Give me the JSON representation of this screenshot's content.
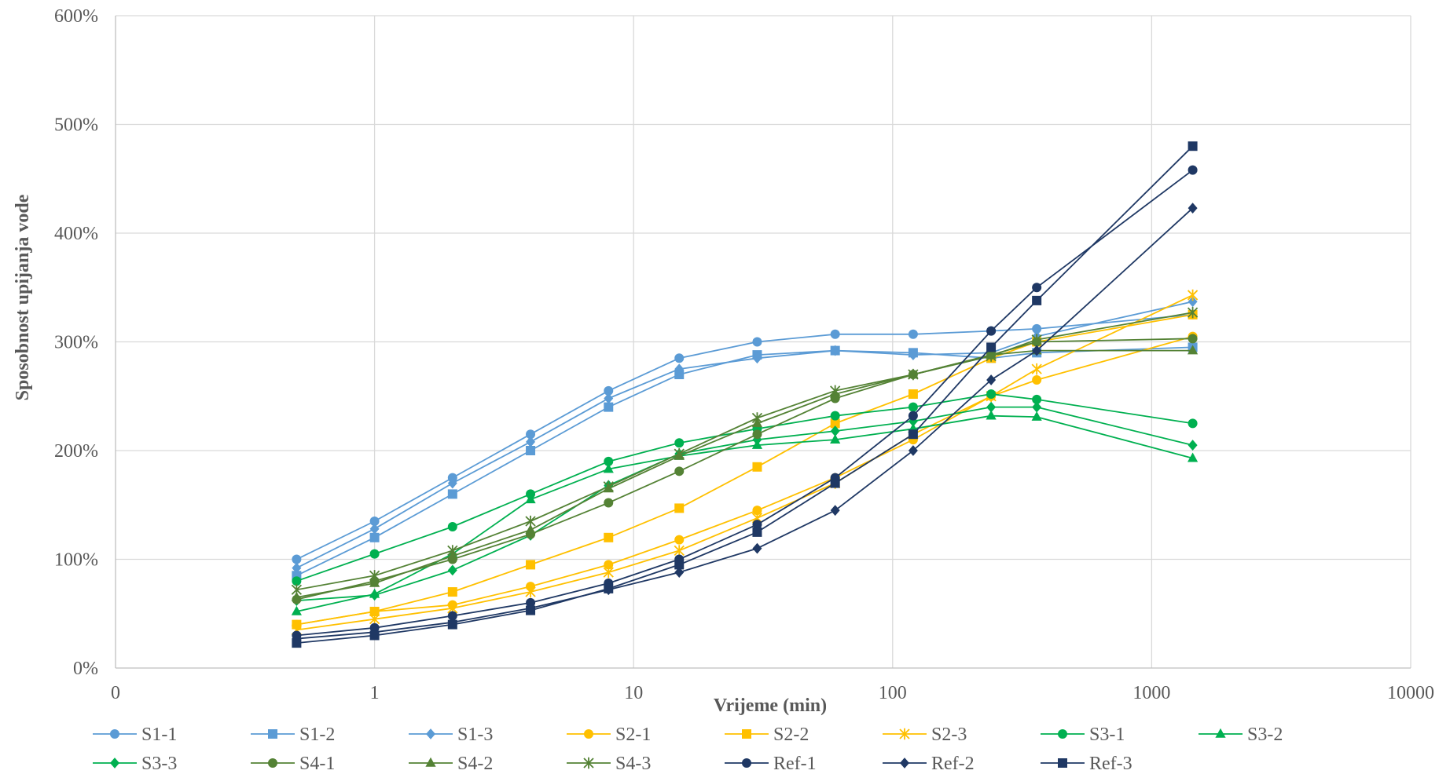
{
  "chart_data": {
    "type": "line",
    "title": "",
    "xlabel": "Vrijeme (min)",
    "ylabel": "Sposobnost upijanja vode",
    "xscale": "log",
    "xlim": [
      0.1,
      10000
    ],
    "ylim": [
      0,
      6
    ],
    "x_ticks": [
      0.1,
      1,
      10,
      100,
      1000,
      10000
    ],
    "x_tick_labels": [
      "0",
      "1",
      "10",
      "100",
      "1000",
      "10000"
    ],
    "y_ticks": [
      0,
      1,
      2,
      3,
      4,
      5,
      6
    ],
    "y_tick_labels": [
      "0%",
      "100%",
      "200%",
      "300%",
      "400%",
      "500%",
      "600%"
    ],
    "grid": true,
    "legend_position": "bottom",
    "x": [
      0.5,
      1,
      2,
      4,
      8,
      15,
      30,
      60,
      120,
      240,
      360,
      1440
    ],
    "series": [
      {
        "name": "S1-1",
        "color": "#5B9BD5",
        "marker": "circle",
        "values": [
          1.0,
          1.35,
          1.75,
          2.15,
          2.55,
          2.85,
          3.0,
          3.07,
          3.07,
          3.1,
          3.12,
          3.25
        ]
      },
      {
        "name": "S1-2",
        "color": "#5B9BD5",
        "marker": "square",
        "values": [
          0.85,
          1.2,
          1.6,
          2.0,
          2.4,
          2.7,
          2.88,
          2.92,
          2.9,
          2.85,
          2.9,
          2.95
        ]
      },
      {
        "name": "S1-3",
        "color": "#5B9BD5",
        "marker": "diamond",
        "values": [
          0.92,
          1.28,
          1.7,
          2.08,
          2.48,
          2.75,
          2.85,
          2.92,
          2.88,
          2.9,
          3.05,
          3.37
        ]
      },
      {
        "name": "S2-1",
        "color": "#FFC000",
        "marker": "circle",
        "values": [
          0.4,
          0.52,
          0.58,
          0.75,
          0.95,
          1.18,
          1.45,
          1.75,
          2.1,
          2.5,
          2.65,
          3.05
        ]
      },
      {
        "name": "S2-2",
        "color": "#FFC000",
        "marker": "square",
        "values": [
          0.4,
          0.52,
          0.7,
          0.95,
          1.2,
          1.47,
          1.85,
          2.25,
          2.52,
          2.85,
          3.0,
          3.25
        ]
      },
      {
        "name": "S2-3",
        "color": "#FFC000",
        "marker": "star",
        "values": [
          0.35,
          0.45,
          0.55,
          0.7,
          0.88,
          1.08,
          1.38,
          1.7,
          2.15,
          2.5,
          2.75,
          3.43
        ]
      },
      {
        "name": "S3-1",
        "color": "#00B050",
        "marker": "circle",
        "values": [
          0.8,
          1.05,
          1.3,
          1.6,
          1.9,
          2.07,
          2.2,
          2.32,
          2.4,
          2.52,
          2.47,
          2.25
        ]
      },
      {
        "name": "S3-2",
        "color": "#00B050",
        "marker": "triangle",
        "values": [
          0.52,
          0.68,
          1.05,
          1.55,
          1.83,
          1.95,
          2.05,
          2.1,
          2.2,
          2.32,
          2.31,
          1.93
        ]
      },
      {
        "name": "S3-3",
        "color": "#00B050",
        "marker": "diamond",
        "values": [
          0.62,
          0.67,
          0.9,
          1.22,
          1.68,
          1.97,
          2.1,
          2.18,
          2.27,
          2.4,
          2.4,
          2.05
        ]
      },
      {
        "name": "S4-1",
        "color": "#548235",
        "marker": "circle",
        "values": [
          0.63,
          0.8,
          1.0,
          1.23,
          1.52,
          1.81,
          2.15,
          2.48,
          2.7,
          2.88,
          3.0,
          3.03
        ]
      },
      {
        "name": "S4-2",
        "color": "#548235",
        "marker": "triangle",
        "values": [
          0.65,
          0.78,
          1.03,
          1.27,
          1.65,
          1.95,
          2.25,
          2.52,
          2.7,
          2.88,
          2.92,
          2.92
        ]
      },
      {
        "name": "S4-3",
        "color": "#548235",
        "marker": "star",
        "values": [
          0.72,
          0.85,
          1.08,
          1.35,
          1.67,
          1.97,
          2.3,
          2.55,
          2.7,
          2.87,
          3.02,
          3.27
        ]
      },
      {
        "name": "Ref-1",
        "color": "#1F3864",
        "marker": "circle",
        "values": [
          0.3,
          0.37,
          0.48,
          0.6,
          0.78,
          1.0,
          1.32,
          1.75,
          2.32,
          3.1,
          3.5,
          4.58
        ]
      },
      {
        "name": "Ref-2",
        "color": "#1F3864",
        "marker": "diamond",
        "values": [
          0.27,
          0.33,
          0.42,
          0.55,
          0.72,
          0.88,
          1.1,
          1.45,
          2.0,
          2.65,
          2.92,
          4.23
        ]
      },
      {
        "name": "Ref-3",
        "color": "#1F3864",
        "marker": "square",
        "values": [
          0.23,
          0.3,
          0.4,
          0.53,
          0.73,
          0.95,
          1.25,
          1.7,
          2.15,
          2.95,
          3.38,
          4.8
        ]
      }
    ]
  }
}
